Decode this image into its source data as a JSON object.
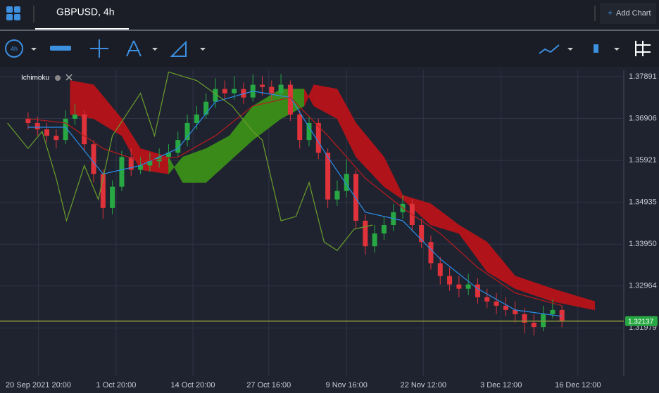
{
  "header": {
    "symbol": "GBPUSD, 4h",
    "add_chart": "Add Chart"
  },
  "toolbar": {
    "interval": "4h"
  },
  "chart_data": {
    "type": "candlestick",
    "indicator": "Ichimoku",
    "xlim": [
      -3,
      63.6
    ],
    "ylim": [
      1.30843,
      1.3804
    ],
    "xticks": [
      {
        "value": 1.1,
        "label": "20 Sep 2021 20:00"
      },
      {
        "value": 9.4,
        "label": "1 Oct 20:00"
      },
      {
        "value": 17.6,
        "label": "14 Oct 20:00"
      },
      {
        "value": 25.7,
        "label": "27 Oct 16:00"
      },
      {
        "value": 34,
        "label": "9 Nov 16:00"
      },
      {
        "value": 42.2,
        "label": "22 Nov 12:00"
      },
      {
        "value": 50.5,
        "label": "3 Dec 12:00"
      },
      {
        "value": 58.7,
        "label": "16 Dec 12:00"
      }
    ],
    "yticks": [
      1.37891,
      1.36906,
      1.35921,
      1.34935,
      {
        "value": 1.3395,
        "label": "1.33950"
      },
      1.32964,
      1.31979
    ],
    "grid": true,
    "up_color": "#27a843",
    "down_color": "#e0323a",
    "x": [
      0,
      1,
      2,
      3,
      4,
      5,
      6,
      7,
      8,
      9,
      10,
      11,
      12,
      13,
      14,
      15,
      16,
      17,
      18,
      19,
      20,
      21,
      22,
      23,
      24,
      25,
      26,
      27,
      28,
      29,
      30,
      31,
      32,
      33,
      34,
      35,
      36,
      37,
      38,
      39,
      40,
      41,
      42,
      43,
      44,
      45,
      46,
      47,
      48,
      49,
      50,
      51,
      52,
      53,
      54,
      55,
      56,
      57
    ],
    "open": [
      1.369,
      1.368,
      1.3665,
      1.365,
      1.364,
      1.369,
      1.37,
      1.363,
      1.356,
      1.348,
      1.353,
      1.36,
      1.357,
      1.358,
      1.359,
      1.36,
      1.361,
      1.364,
      1.368,
      1.37,
      1.373,
      1.376,
      1.375,
      1.376,
      1.374,
      1.377,
      1.3765,
      1.375,
      1.377,
      1.37,
      1.364,
      1.368,
      1.361,
      1.35,
      1.352,
      1.356,
      1.345,
      1.339,
      1.342,
      1.344,
      1.347,
      1.349,
      1.344,
      1.34,
      1.335,
      1.332,
      1.33,
      1.329,
      1.33,
      1.327,
      1.326,
      1.325,
      1.324,
      1.323,
      1.321,
      1.32,
      1.323,
      1.324
    ],
    "high": [
      1.3705,
      1.3695,
      1.368,
      1.3665,
      1.371,
      1.3725,
      1.371,
      1.364,
      1.357,
      1.3545,
      1.3615,
      1.362,
      1.36,
      1.361,
      1.362,
      1.363,
      1.366,
      1.37,
      1.372,
      1.375,
      1.3785,
      1.378,
      1.379,
      1.3775,
      1.3795,
      1.379,
      1.378,
      1.3795,
      1.378,
      1.371,
      1.3695,
      1.369,
      1.362,
      1.3545,
      1.3595,
      1.357,
      1.3465,
      1.344,
      1.346,
      1.349,
      1.351,
      1.35,
      1.3455,
      1.3415,
      1.3365,
      1.334,
      1.332,
      1.3325,
      1.3315,
      1.329,
      1.328,
      1.327,
      1.326,
      1.3245,
      1.323,
      1.325,
      1.3265,
      1.325
    ],
    "low": [
      1.3665,
      1.365,
      1.3635,
      1.362,
      1.363,
      1.3675,
      1.3615,
      1.354,
      1.3455,
      1.3465,
      1.352,
      1.3555,
      1.356,
      1.3565,
      1.3575,
      1.3585,
      1.36,
      1.3625,
      1.3665,
      1.369,
      1.3715,
      1.3735,
      1.3735,
      1.3725,
      1.373,
      1.3745,
      1.3735,
      1.374,
      1.3685,
      1.362,
      1.3625,
      1.3595,
      1.348,
      1.3485,
      1.3505,
      1.343,
      1.337,
      1.3375,
      1.3405,
      1.3425,
      1.3455,
      1.3425,
      1.3385,
      1.3335,
      1.33,
      1.3285,
      1.327,
      1.3275,
      1.3255,
      1.3245,
      1.323,
      1.3225,
      1.321,
      1.3185,
      1.318,
      1.319,
      1.322,
      1.32
    ],
    "close": [
      1.368,
      1.3665,
      1.365,
      1.364,
      1.369,
      1.37,
      1.363,
      1.356,
      1.348,
      1.353,
      1.36,
      1.357,
      1.358,
      1.359,
      1.36,
      1.361,
      1.364,
      1.368,
      1.37,
      1.373,
      1.376,
      1.375,
      1.376,
      1.374,
      1.377,
      1.3765,
      1.375,
      1.377,
      1.37,
      1.364,
      1.368,
      1.361,
      1.35,
      1.352,
      1.356,
      1.345,
      1.339,
      1.342,
      1.344,
      1.347,
      1.349,
      1.344,
      1.34,
      1.335,
      1.332,
      1.33,
      1.329,
      1.33,
      1.327,
      1.326,
      1.325,
      1.324,
      1.323,
      1.321,
      1.32,
      1.323,
      1.324,
      1.32137
    ],
    "lines": [
      {
        "color": "#2a8de8",
        "x": [
          0,
          4,
          8,
          12,
          16,
          20,
          24,
          28,
          32,
          36,
          40,
          44,
          48,
          52,
          57
        ],
        "values": [
          1.367,
          1.367,
          1.356,
          1.358,
          1.362,
          1.373,
          1.3755,
          1.374,
          1.36,
          1.347,
          1.345,
          1.336,
          1.329,
          1.324,
          1.3225
        ]
      },
      {
        "color": "#b71c1c",
        "x": [
          0,
          4,
          8,
          12,
          16,
          20,
          24,
          28,
          32,
          36,
          40,
          44,
          48,
          52,
          57
        ],
        "values": [
          1.369,
          1.368,
          1.362,
          1.359,
          1.36,
          1.365,
          1.372,
          1.374,
          1.365,
          1.355,
          1.348,
          1.342,
          1.334,
          1.328,
          1.325
        ]
      },
      {
        "color": "#6a9e2a",
        "x": [
          -2.2,
          0,
          1.5,
          3,
          4.1,
          6,
          7.5,
          9,
          12,
          13.5,
          15,
          18,
          21.8,
          24,
          25,
          27,
          28.6,
          30,
          31.6,
          33,
          34.8,
          36.8
        ],
        "values": [
          1.368,
          1.362,
          1.366,
          1.355,
          1.345,
          1.358,
          1.35,
          1.365,
          1.375,
          1.365,
          1.38,
          1.378,
          1.372,
          1.366,
          1.364,
          1.345,
          1.346,
          1.354,
          1.34,
          1.338,
          1.343,
          1.344
        ]
      }
    ],
    "cloud": {
      "bull_color": "#3a8a1a",
      "bear_color": "#b0141a",
      "x": [
        4.5,
        7,
        10,
        12,
        15,
        16.5,
        19,
        21.5,
        24,
        27,
        29.5,
        30.5,
        33,
        35,
        38,
        40,
        43,
        46,
        49,
        52,
        56,
        60.5
      ],
      "span_a": [
        1.37,
        1.369,
        1.365,
        1.357,
        1.356,
        1.36,
        1.362,
        1.365,
        1.372,
        1.376,
        1.376,
        1.372,
        1.369,
        1.36,
        1.353,
        1.35,
        1.344,
        1.342,
        1.333,
        1.329,
        1.326,
        1.324
      ],
      "span_b": [
        1.378,
        1.377,
        1.369,
        1.362,
        1.36,
        1.354,
        1.354,
        1.359,
        1.364,
        1.369,
        1.372,
        1.377,
        1.376,
        1.368,
        1.36,
        1.351,
        1.349,
        1.344,
        1.34,
        1.332,
        1.329,
        1.326
      ]
    },
    "last_price": 1.32137,
    "last_price_color": "#27a843"
  }
}
